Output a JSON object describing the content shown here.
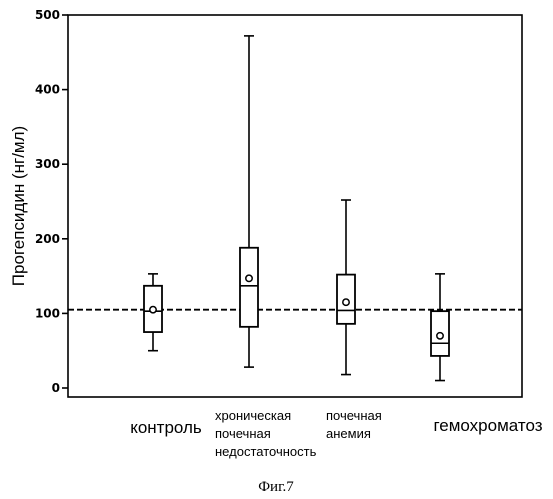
{
  "chart_data": {
    "type": "boxplot",
    "ylabel": "Прогепсидин (нг/мл)",
    "ylim": [
      0,
      500
    ],
    "yticks": [
      0,
      100,
      200,
      300,
      400,
      500
    ],
    "reference_line": 105,
    "categories": [
      {
        "label_lines": [
          "контроль"
        ],
        "min": 50,
        "q1": 75,
        "median": 103,
        "q3": 137,
        "max": 153,
        "mean": 105
      },
      {
        "label_lines": [
          "хроническая",
          "почечная",
          "недостаточность"
        ],
        "min": 28,
        "q1": 82,
        "median": 137,
        "q3": 188,
        "max": 472,
        "mean": 147
      },
      {
        "label_lines": [
          "почечная",
          "анемия"
        ],
        "min": 18,
        "q1": 86,
        "median": 104,
        "q3": 152,
        "max": 252,
        "mean": 115
      },
      {
        "label_lines": [
          "гемохроматоз"
        ],
        "min": 10,
        "q1": 43,
        "median": 60,
        "q3": 103,
        "max": 153,
        "mean": 70
      }
    ]
  },
  "caption": "Фиг.7"
}
